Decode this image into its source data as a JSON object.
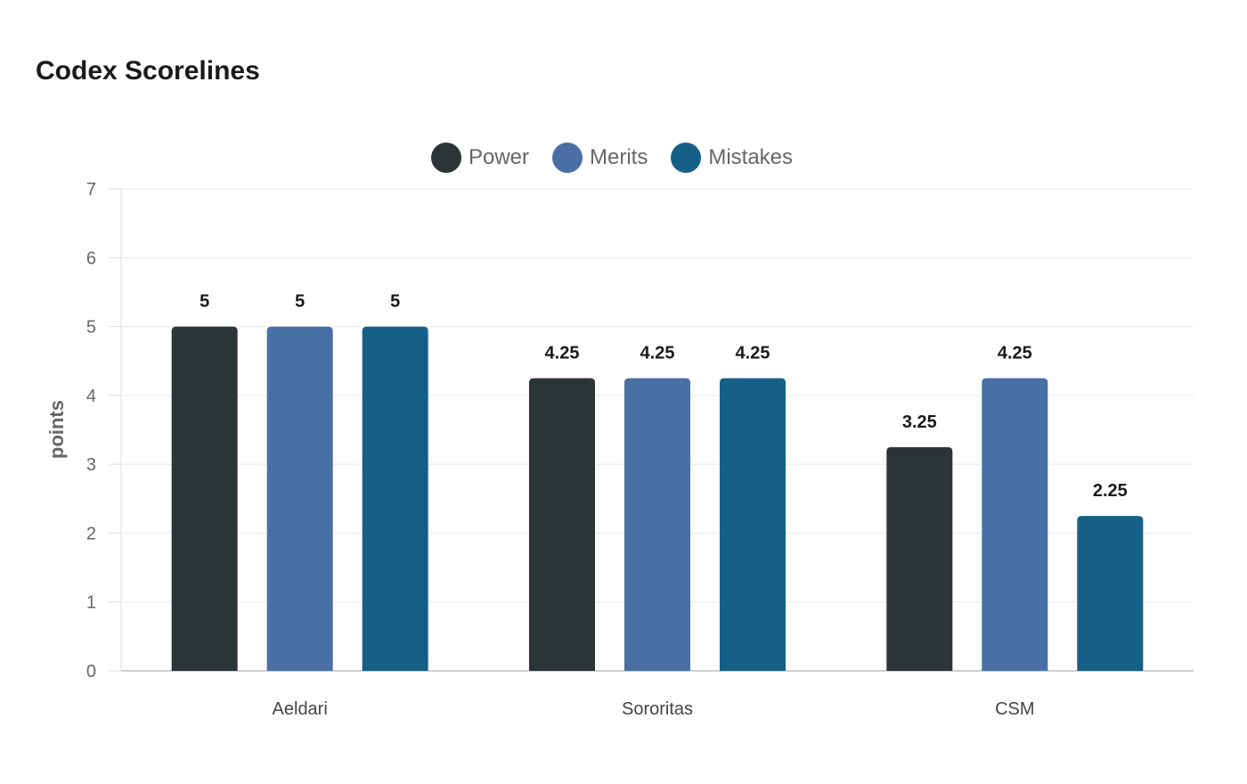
{
  "chart_data": {
    "type": "bar",
    "title": "Codex Scorelines",
    "ylabel": "points",
    "xlabel": "",
    "ylim": [
      0,
      7
    ],
    "yticks": [
      0,
      1,
      2,
      3,
      4,
      5,
      6,
      7
    ],
    "categories": [
      "Aeldari",
      "Sororitas",
      "CSM"
    ],
    "series": [
      {
        "name": "Power",
        "color": "#2d3436",
        "values": [
          5,
          4.25,
          3.25
        ]
      },
      {
        "name": "Merits",
        "color": "#4a6fa5",
        "values": [
          5,
          4.25,
          4.25
        ]
      },
      {
        "name": "Mistakes",
        "color": "#166088",
        "values": [
          5,
          4.25,
          2.25
        ]
      }
    ],
    "grid": true,
    "legend_position": "top-center",
    "data_labels": true
  }
}
